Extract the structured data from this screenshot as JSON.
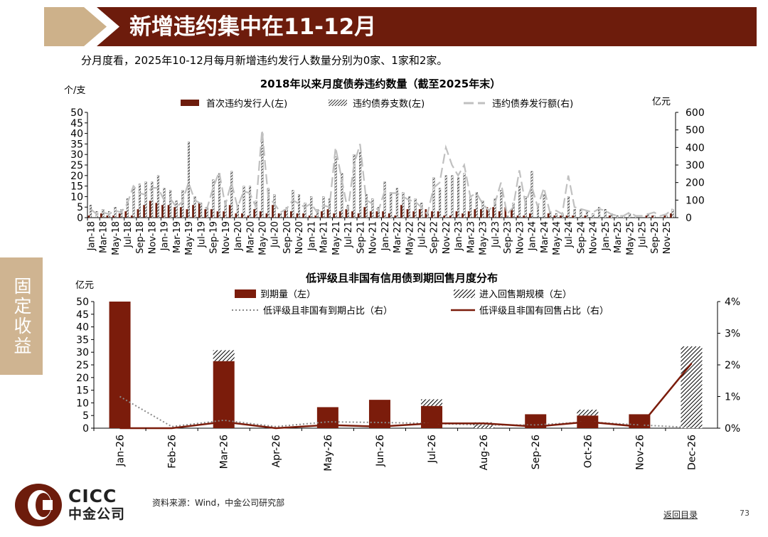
{
  "page": {
    "title": "新增违约集中在11-12月",
    "subtitle": "分月度看，2025年10-12月每月新增违约发行人数量分别为0家、1家和2家。",
    "side_tab": "固定收益",
    "source": "资料来源：Wind，中金公司研究部",
    "back_link": "返回目录",
    "page_number": "73",
    "logo": {
      "en": "CICC",
      "cn": "中金公司"
    },
    "colors": {
      "brand": "#6d1c0c",
      "tab": "#cfb491",
      "header_chevron": "#cdb18a",
      "dark_red": "#7b1c0b",
      "gray_line": "#c0c0c0"
    }
  },
  "chart_data": [
    {
      "type": "bar",
      "title": "2018年以来月度债券违约数量（截至2025年末）",
      "y_left_unit": "个/支",
      "y_right_unit": "亿元",
      "ylim_left": [
        0,
        50
      ],
      "yticks_left": [
        "0",
        "5",
        "10",
        "15",
        "20",
        "25",
        "30",
        "35",
        "40",
        "45",
        "50"
      ],
      "ylim_right": [
        0,
        600
      ],
      "yticks_right": [
        "0",
        "100",
        "200",
        "300",
        "400",
        "500",
        "600"
      ],
      "legend": [
        "首次违约发行人(左)",
        "违约债券支数(左)",
        "违约债券发行额(右)"
      ],
      "x_tick_labels": [
        "Jan-18",
        "Mar-18",
        "May-18",
        "Jul-18",
        "Sep-18",
        "Nov-18",
        "Jan-19",
        "Mar-19",
        "May-19",
        "Jul-19",
        "Sep-19",
        "Nov-19",
        "Jan-20",
        "Mar-20",
        "May-20",
        "Jul-20",
        "Sep-20",
        "Nov-20",
        "Jan-21",
        "Mar-21",
        "May-21",
        "Jul-21",
        "Sep-21",
        "Nov-21",
        "Jan-22",
        "Mar-22",
        "May-22",
        "Jul-22",
        "Sep-22",
        "Nov-22",
        "Jan-23",
        "Mar-23",
        "May-23",
        "Jul-23",
        "Sep-23",
        "Nov-23",
        "Jan-24",
        "Mar-24",
        "May-24",
        "Jul-24",
        "Sep-24",
        "Nov-24",
        "Jan-25",
        "Mar-25",
        "May-25",
        "Jul-25",
        "Sep-25",
        "Nov-25"
      ],
      "months": 96,
      "series": [
        {
          "name": "首次违约发行人(左)",
          "values": [
            1,
            0,
            2,
            1,
            1,
            2,
            3,
            1,
            4,
            6,
            8,
            7,
            6,
            6,
            5,
            5,
            4,
            6,
            7,
            4,
            4,
            3,
            3,
            6,
            2,
            2,
            1,
            4,
            3,
            2,
            6,
            2,
            4,
            3,
            2,
            2,
            1,
            1,
            3,
            4,
            2,
            3,
            4,
            3,
            2,
            5,
            3,
            3,
            3,
            2,
            1,
            6,
            4,
            3,
            4,
            4,
            3,
            3,
            1,
            1,
            3,
            2,
            3,
            4,
            4,
            5,
            5,
            3,
            5,
            4,
            1,
            1,
            2,
            0,
            0,
            2,
            1,
            1,
            1,
            1,
            0,
            1,
            0,
            0,
            0,
            1,
            0,
            0,
            0,
            0,
            0,
            1,
            1,
            0,
            1,
            2
          ]
        },
        {
          "name": "违约债券支数(左)",
          "values": [
            6,
            3,
            4,
            3,
            5,
            4,
            9,
            15,
            16,
            17,
            17,
            20,
            14,
            13,
            8,
            13,
            36,
            10,
            7,
            5,
            18,
            21,
            8,
            22,
            6,
            15,
            15,
            8,
            40,
            14,
            11,
            2,
            5,
            13,
            11,
            7,
            10,
            4,
            10,
            9,
            29,
            21,
            6,
            30,
            31,
            11,
            9,
            5,
            17,
            12,
            14,
            12,
            10,
            9,
            7,
            2,
            19,
            14,
            20,
            20,
            19,
            21,
            10,
            12,
            8,
            4,
            9,
            13,
            1,
            7,
            15,
            10,
            22,
            6,
            11,
            3,
            2,
            2,
            10,
            4,
            4,
            3,
            2,
            5,
            4,
            2,
            1,
            1,
            2,
            1,
            0,
            2,
            1,
            0,
            1,
            4
          ]
        },
        {
          "name": "违约债券发行额(右)",
          "values": [
            50,
            20,
            30,
            20,
            40,
            30,
            80,
            180,
            140,
            130,
            170,
            170,
            100,
            110,
            60,
            90,
            200,
            100,
            80,
            50,
            170,
            260,
            70,
            200,
            60,
            150,
            140,
            60,
            500,
            120,
            80,
            30,
            50,
            100,
            80,
            60,
            80,
            30,
            70,
            60,
            400,
            220,
            40,
            300,
            420,
            100,
            80,
            40,
            150,
            140,
            140,
            120,
            100,
            90,
            60,
            20,
            170,
            200,
            400,
            300,
            240,
            300,
            120,
            140,
            80,
            40,
            80,
            200,
            20,
            60,
            270,
            80,
            180,
            60,
            170,
            30,
            40,
            20,
            240,
            60,
            50,
            40,
            30,
            50,
            40,
            20,
            10,
            10,
            30,
            10,
            10,
            20,
            30,
            10,
            20,
            50
          ]
        }
      ]
    },
    {
      "type": "bar",
      "title": "低评级且非国有信用债到期回售月度分布",
      "y_left_unit": "亿元",
      "ylim_left": [
        0,
        50
      ],
      "yticks_left": [
        "0",
        "5",
        "10",
        "15",
        "20",
        "25",
        "30",
        "35",
        "40",
        "45",
        "50"
      ],
      "ylim_right": [
        0,
        4
      ],
      "yticks_right": [
        "0%",
        "1%",
        "2%",
        "3%",
        "4%"
      ],
      "legend": [
        "到期量（左）",
        "进入回售期规模（左）",
        "低评级且非国有到期占比（右）",
        "低评级且非国有回售占比（右）"
      ],
      "categories": [
        "Jan-26",
        "Feb-26",
        "Mar-26",
        "Apr-26",
        "May-26",
        "Jun-26",
        "Jul-26",
        "Aug-26",
        "Sep-26",
        "Oct-26",
        "Nov-26",
        "Dec-26"
      ],
      "series": [
        {
          "name": "到期量（左）",
          "values": [
            50,
            0,
            26.5,
            0,
            8.3,
            11.2,
            8.8,
            0,
            5.5,
            5,
            5.5,
            0
          ]
        },
        {
          "name": "进入回售期规模（左）",
          "values": [
            0,
            0,
            4.3,
            0,
            0,
            0,
            2.6,
            2.3,
            0,
            2.3,
            0,
            32.3
          ]
        },
        {
          "name": "低评级且非国有到期占比（右）",
          "values": [
            1.0,
            0.05,
            0.25,
            0.05,
            0.2,
            0.18,
            0.15,
            0.1,
            0.1,
            0.2,
            0.1,
            0.02
          ]
        },
        {
          "name": "低评级且非国有回售占比（右）",
          "values": [
            0,
            0,
            0.2,
            0,
            0.1,
            0.05,
            0.15,
            0.15,
            0.05,
            0.2,
            0.05,
            2.05
          ]
        }
      ]
    }
  ]
}
